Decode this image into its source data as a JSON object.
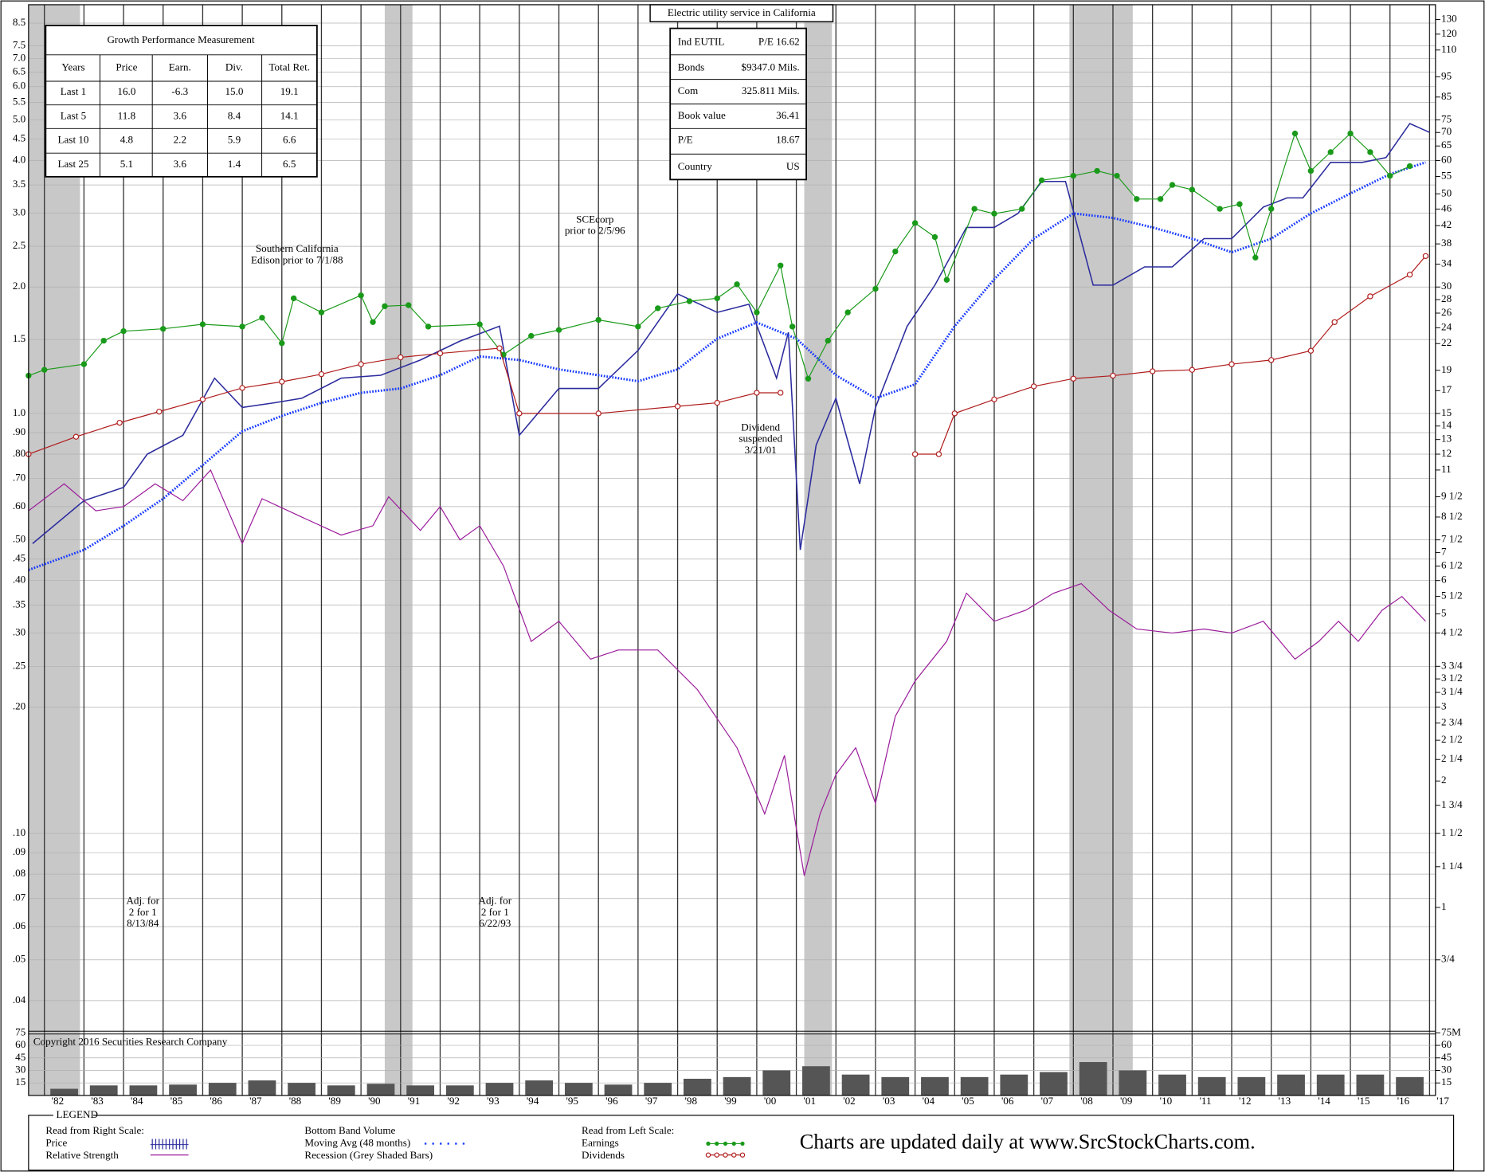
{
  "chart_data": {
    "type": "line",
    "title": "Electric utility service in California",
    "log": true,
    "grid": true,
    "xlim": [
      1981.6,
      2017.15
    ],
    "xticks": [
      {
        "value": 1982,
        "label": "'82"
      },
      {
        "value": 1983,
        "label": "'83"
      },
      {
        "value": 1984,
        "label": "'84"
      },
      {
        "value": 1985,
        "label": "'85"
      },
      {
        "value": 1986,
        "label": "'86"
      },
      {
        "value": 1987,
        "label": "'87"
      },
      {
        "value": 1988,
        "label": "'88"
      },
      {
        "value": 1989,
        "label": "'89"
      },
      {
        "value": 1990,
        "label": "'90"
      },
      {
        "value": 1991,
        "label": "'91"
      },
      {
        "value": 1992,
        "label": "'92"
      },
      {
        "value": 1993,
        "label": "'93"
      },
      {
        "value": 1994,
        "label": "'94"
      },
      {
        "value": 1995,
        "label": "'95"
      },
      {
        "value": 1996,
        "label": "'96"
      },
      {
        "value": 1997,
        "label": "'97"
      },
      {
        "value": 1998,
        "label": "'98"
      },
      {
        "value": 1999,
        "label": "'99"
      },
      {
        "value": 2000,
        "label": "'00"
      },
      {
        "value": 2001,
        "label": "'01"
      },
      {
        "value": 2002,
        "label": "'02"
      },
      {
        "value": 2003,
        "label": "'03"
      },
      {
        "value": 2004,
        "label": "'04"
      },
      {
        "value": 2005,
        "label": "'05"
      },
      {
        "value": 2006,
        "label": "'06"
      },
      {
        "value": 2007,
        "label": "'07"
      },
      {
        "value": 2008,
        "label": "'08"
      },
      {
        "value": 2009,
        "label": "'09"
      },
      {
        "value": 2010,
        "label": "'10"
      },
      {
        "value": 2011,
        "label": "'11"
      },
      {
        "value": 2012,
        "label": "'12"
      },
      {
        "value": 2013,
        "label": "'13"
      },
      {
        "value": 2014,
        "label": "'14"
      },
      {
        "value": 2015,
        "label": "'15"
      },
      {
        "value": 2016,
        "label": "'16"
      },
      {
        "value": 2017,
        "label": "'17"
      }
    ],
    "ylim": [
      0.034,
      9.4
    ],
    "yticks": [
      8.5,
      7.5,
      {
        "value": 7,
        "label": "7.0"
      },
      6.5,
      {
        "value": 6,
        "label": "6.0"
      },
      5.5,
      {
        "value": 5,
        "label": "5.0"
      },
      4.5,
      {
        "value": 4,
        "label": "4.0"
      },
      3.5,
      {
        "value": 3,
        "label": "3.0"
      },
      2.5,
      {
        "value": 2,
        "label": "2.0"
      },
      1.5,
      {
        "value": 1,
        "label": "1.0"
      },
      {
        "value": 0.9,
        "label": ".90"
      },
      {
        "value": 0.8,
        "label": ".80"
      },
      {
        "value": 0.7,
        "label": ".70"
      },
      {
        "value": 0.6,
        "label": ".60"
      },
      {
        "value": 0.5,
        "label": ".50"
      },
      {
        "value": 0.45,
        "label": ".45"
      },
      {
        "value": 0.4,
        "label": ".40"
      },
      {
        "value": 0.35,
        "label": ".35"
      },
      {
        "value": 0.3,
        "label": ".30"
      },
      {
        "value": 0.25,
        "label": ".25"
      },
      {
        "value": 0.2,
        "label": ".20"
      },
      {
        "value": 0.1,
        "label": ".10"
      },
      {
        "value": 0.09,
        "label": ".09"
      },
      {
        "value": 0.08,
        "label": ".08"
      },
      {
        "value": 0.07,
        "label": ".07"
      },
      {
        "value": 0.06,
        "label": ".06"
      },
      {
        "value": 0.05,
        "label": ".05"
      },
      {
        "value": 0.04,
        "label": ".04"
      }
    ],
    "y2lim": [
      0.51,
      141
    ],
    "y2ticks": [
      130,
      120,
      110,
      95,
      85,
      75,
      70,
      65,
      60,
      55,
      50,
      46,
      42,
      38,
      34,
      30,
      28,
      26,
      24,
      22,
      19,
      17,
      15,
      14,
      13,
      12,
      11,
      {
        "value": 9.5,
        "label": "9 1/2"
      },
      {
        "value": 8.5,
        "label": "8 1/2"
      },
      {
        "value": 7.5,
        "label": "7 1/2"
      },
      7,
      {
        "value": 6.5,
        "label": "6 1/2"
      },
      6,
      {
        "value": 5.5,
        "label": "5 1/2"
      },
      5,
      {
        "value": 4.5,
        "label": "4 1/2"
      },
      {
        "value": 3.75,
        "label": "3 3/4"
      },
      {
        "value": 3.5,
        "label": "3 1/2"
      },
      {
        "value": 3.25,
        "label": "3 1/4"
      },
      3,
      {
        "value": 2.75,
        "label": "2 3/4"
      },
      {
        "value": 2.5,
        "label": "2 1/2"
      },
      {
        "value": 2.25,
        "label": "2 1/4"
      },
      2,
      {
        "value": 1.75,
        "label": "1 3/4"
      },
      {
        "value": 1.5,
        "label": "1 1/2"
      },
      {
        "value": 1.25,
        "label": "1 1/4"
      },
      1,
      {
        "value": 0.75,
        "label": "3/4"
      }
    ],
    "recessions": {
      "name": "Recession (Grey Shaded Bars)",
      "color": "#c8c8c8",
      "ranges": [
        [
          1981.6,
          1982.9
        ],
        [
          1990.6,
          1991.3
        ],
        [
          2001.2,
          2001.9
        ],
        [
          2007.9,
          2009.5
        ]
      ]
    },
    "series": [
      {
        "name": "Price",
        "color": "#2b2b9e",
        "axis": "y2",
        "width": 1.3,
        "x": [
          1981.7,
          1983.0,
          1984.0,
          1984.6,
          1985.5,
          1986.3,
          1987.0,
          1987.8,
          1988.5,
          1989.5,
          1990.5,
          1991.5,
          1992.5,
          1993.5,
          1994.0,
          1995.0,
          1996.0,
          1997.0,
          1998.0,
          1999.0,
          1999.8,
          2000.5,
          2000.8,
          2001.1,
          2001.5,
          2002.0,
          2002.6,
          2003.0,
          2003.8,
          2004.5,
          2005.3,
          2006.0,
          2006.6,
          2007.2,
          2007.8,
          2008.5,
          2009.0,
          2009.8,
          2010.5,
          2011.3,
          2012.0,
          2012.8,
          2013.4,
          2013.8,
          2014.5,
          2015.3,
          2015.9,
          2016.5,
          2017.0
        ],
        "values": [
          7.35,
          9.3,
          10.0,
          12,
          13.3,
          18.2,
          15.5,
          15.9,
          16.3,
          18.2,
          18.5,
          20.1,
          22.3,
          24.2,
          13.3,
          17.2,
          17.2,
          21.2,
          28.9,
          26.1,
          27.3,
          18.2,
          23.4,
          7.1,
          12.6,
          16.3,
          10.2,
          15.5,
          24.2,
          30.3,
          41.6,
          41.6,
          44.9,
          53.5,
          53.5,
          30.3,
          30.3,
          33.5,
          33.5,
          39.1,
          39.1,
          46.5,
          48.9,
          48.9,
          59.4,
          59.4,
          61,
          73.5,
          70
        ]
      },
      {
        "name": "Relative Strength",
        "color": "#9b1b9b",
        "axis": "y2",
        "width": 1,
        "x": [
          1981.6,
          1982.5,
          1983.3,
          1984.0,
          1984.8,
          1985.5,
          1986.2,
          1987.0,
          1987.5,
          1988.5,
          1989.5,
          1990.3,
          1990.7,
          1991.5,
          1992.0,
          1992.5,
          1993.0,
          1993.6,
          1994.3,
          1995.0,
          1995.8,
          1996.5,
          1997.5,
          1998.5,
          1999.5,
          2000.2,
          2000.7,
          2001.0,
          2001.2,
          2001.6,
          2002.0,
          2002.5,
          2003.0,
          2003.5,
          2004.0,
          2004.8,
          2005.3,
          2006.0,
          2006.8,
          2007.5,
          2008.2,
          2008.9,
          2009.6,
          2010.5,
          2011.3,
          2012.0,
          2012.8,
          2013.6,
          2014.2,
          2014.7,
          2015.2,
          2015.8,
          2016.3,
          2016.9
        ],
        "values": [
          8.8,
          10.2,
          8.8,
          9.0,
          10.2,
          9.3,
          11.0,
          7.35,
          9.4,
          8.5,
          7.7,
          8.1,
          9.5,
          7.9,
          9.0,
          7.5,
          8.1,
          6.5,
          4.3,
          4.8,
          3.9,
          4.1,
          4.1,
          3.3,
          2.4,
          1.67,
          2.3,
          1.54,
          1.19,
          1.67,
          2.07,
          2.4,
          1.77,
          2.85,
          3.46,
          4.3,
          5.6,
          4.8,
          5.1,
          5.6,
          5.9,
          5.1,
          4.6,
          4.5,
          4.6,
          4.5,
          4.8,
          3.9,
          4.3,
          4.8,
          4.3,
          5.1,
          5.5,
          4.8
        ]
      },
      {
        "name": "Moving Avg (48 months)",
        "color": "#1a3cff",
        "axis": "y2",
        "width": 2.5,
        "dash": "1.5 1.5",
        "x": [
          1981.6,
          1983,
          1984,
          1985,
          1986,
          1987,
          1988,
          1989,
          1990,
          1991,
          1992,
          1993,
          1994,
          1995,
          1996,
          1997,
          1998,
          1999,
          2000,
          2001,
          2002,
          2003,
          2004,
          2005,
          2006,
          2007,
          2008,
          2009,
          2010,
          2011,
          2012,
          2013,
          2014,
          2015,
          2016,
          2016.9
        ],
        "values": [
          6.36,
          7.1,
          8.1,
          9.4,
          11.3,
          13.6,
          14.8,
          15.9,
          16.8,
          17.2,
          18.5,
          20.5,
          20.1,
          19.1,
          18.5,
          17.9,
          19.1,
          22.6,
          24.7,
          22.6,
          18.5,
          16.3,
          17.6,
          24.2,
          31.3,
          39.1,
          44.9,
          43.8,
          41.6,
          39.1,
          36.3,
          39.1,
          44.9,
          50.1,
          55.7,
          59.4
        ]
      },
      {
        "name": "Earnings",
        "color": "#1a9a1a",
        "axis": "y",
        "width": 1,
        "marker": "filled",
        "x": [
          1981.6,
          1982.0,
          1983.0,
          1983.5,
          1984.0,
          1985.0,
          1986.0,
          1987.0,
          1987.5,
          1988.0,
          1988.3,
          1989.0,
          1990.0,
          1990.3,
          1990.6,
          1991.2,
          1991.7,
          1993.0,
          1993.6,
          1994.3,
          1995.0,
          1996.0,
          1997.0,
          1997.5,
          1998.3,
          1999.0,
          1999.5,
          2000.0,
          2000.6,
          2000.9,
          2001.3,
          2001.8,
          2002.3,
          2003.0,
          2003.5,
          2004.0,
          2004.5,
          2004.8,
          2005.5,
          2006.0,
          2006.7,
          2007.2,
          2008.0,
          2008.6,
          2009.1,
          2009.6,
          2010.2,
          2010.5,
          2011.0,
          2011.7,
          2012.2,
          2012.6,
          2013.0,
          2013.6,
          2014.0,
          2014.5,
          2015.0,
          2015.5,
          2016.0,
          2016.5
        ],
        "values": [
          1.23,
          1.27,
          1.31,
          1.49,
          1.57,
          1.59,
          1.63,
          1.61,
          1.69,
          1.47,
          1.88,
          1.74,
          1.91,
          1.65,
          1.8,
          1.81,
          1.61,
          1.63,
          1.38,
          1.53,
          1.58,
          1.67,
          1.61,
          1.78,
          1.85,
          1.88,
          2.03,
          1.74,
          2.25,
          1.61,
          1.21,
          1.49,
          1.74,
          1.98,
          2.43,
          2.84,
          2.63,
          2.08,
          3.07,
          2.99,
          3.07,
          3.59,
          3.68,
          3.78,
          3.68,
          3.24,
          3.24,
          3.5,
          3.41,
          3.07,
          3.15,
          2.35,
          3.07,
          4.64,
          3.78,
          4.19,
          4.64,
          4.19,
          3.68,
          3.88
        ]
      },
      {
        "name": "Dividends",
        "color": "#b01c1c",
        "axis": "y",
        "width": 1,
        "marker": "open",
        "x": [
          1981.6,
          1982.8,
          1983.9,
          1984.9,
          1986.0,
          1987.0,
          1988.0,
          1989.0,
          1990.0,
          1991.0,
          1992.0,
          1993.5,
          1994.0,
          1996.0,
          1998.0,
          1999.0,
          2000.0,
          2000.6,
          2002.5,
          2004.0,
          2004.6,
          2005.0,
          2006.0,
          2007.0,
          2008.0,
          2009.0,
          2010.0,
          2011.0,
          2012.0,
          2013.0,
          2014.0,
          2014.6,
          2015.5,
          2016.5,
          2016.9
        ],
        "values": [
          0.8,
          0.88,
          0.95,
          1.01,
          1.08,
          1.15,
          1.19,
          1.24,
          1.31,
          1.36,
          1.39,
          1.43,
          1.0,
          1.0,
          1.04,
          1.06,
          1.12,
          1.12,
          null,
          0.8,
          0.8,
          1.0,
          1.08,
          1.16,
          1.21,
          1.23,
          1.26,
          1.27,
          1.31,
          1.34,
          1.41,
          1.65,
          1.9,
          2.14,
          2.37
        ]
      }
    ],
    "volume": {
      "name": "Bottom Band Volume",
      "color": "#555555",
      "x": [
        1982.5,
        1983.5,
        1984.5,
        1985.5,
        1986.5,
        1987.5,
        1988.5,
        1989.5,
        1990.5,
        1991.5,
        1992.5,
        1993.5,
        1994.5,
        1995.5,
        1996.5,
        1997.5,
        1998.5,
        1999.5,
        2000.5,
        2001.5,
        2002.5,
        2003.5,
        2004.5,
        2005.5,
        2006.5,
        2007.5,
        2008.5,
        2009.5,
        2010.5,
        2011.5,
        2012.5,
        2013.5,
        2014.5,
        2015.5,
        2016.5
      ],
      "values": [
        8,
        12,
        12,
        13,
        15,
        18,
        15,
        12,
        14,
        12,
        12,
        15,
        18,
        15,
        13,
        15,
        20,
        22,
        30,
        35,
        25,
        22,
        22,
        22,
        25,
        28,
        40,
        30,
        25,
        22,
        22,
        25,
        25,
        25,
        22
      ],
      "vlim": [
        0,
        77
      ],
      "vticks": [
        15,
        30,
        45,
        60,
        75
      ],
      "vticks_right": [
        15,
        30,
        45,
        60,
        {
          "value": 75,
          "label": "75M"
        }
      ]
    },
    "growth_table": {
      "title": "Growth Performance Measurement",
      "header": [
        "Years",
        "Price",
        "Earn.",
        "Div.",
        "Total Ret."
      ],
      "rows": [
        [
          "Last 1",
          "16.0",
          "-6.3",
          "15.0",
          "19.1"
        ],
        [
          "Last 5",
          "11.8",
          "3.6",
          "8.4",
          "14.1"
        ],
        [
          "Last 10",
          "4.8",
          "2.2",
          "5.9",
          "6.6"
        ],
        [
          "Last 25",
          "5.1",
          "3.6",
          "1.4",
          "6.5"
        ]
      ]
    },
    "info_box": {
      "rows": [
        [
          "Ind  EUTIL",
          "P/E 16.62"
        ],
        [
          "Bonds",
          "$9347.0 Mils."
        ],
        [
          "Com",
          "325.811 Mils."
        ],
        [
          "Book value",
          "36.41"
        ],
        [
          "P/E",
          "18.67"
        ],
        [
          "Country",
          "US"
        ]
      ]
    },
    "annotations": [
      {
        "lines": [
          "Southern California",
          "Edison prior to 7/1/88"
        ]
      },
      {
        "lines": [
          "SCEcorp",
          "prior to 2/5/96"
        ]
      },
      {
        "lines": [
          "Dividend",
          "suspended",
          "3/21/01"
        ]
      },
      {
        "lines": [
          "Adj. for",
          "2 for 1",
          "8/13/84"
        ]
      },
      {
        "lines": [
          "Adj. for",
          "2 for 1",
          "6/22/93"
        ]
      }
    ],
    "copyright": "Copyright 2016 Securities Research Company",
    "legend": {
      "title": "LEGEND",
      "right_header": "Read from Right Scale:",
      "left_header": "Read from Left Scale:"
    },
    "footer": "Charts are updated daily at www.SrcStockCharts.com."
  }
}
